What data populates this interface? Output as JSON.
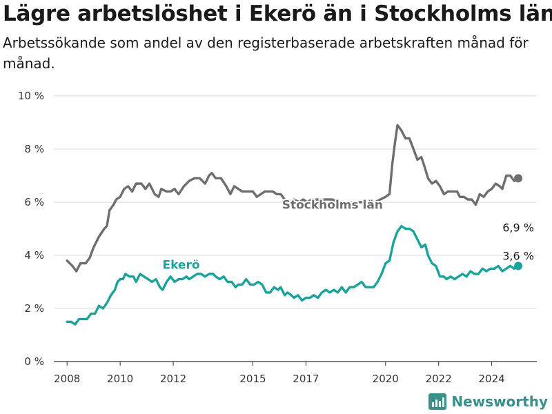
{
  "title": "Lägre arbetslöshet i Ekerö än i Stockholms län",
  "subtitle": "Arbetssökande som andel av den registerbaserade arbetskraften månad för månad.",
  "brand": {
    "name": "Newsworthy",
    "icon": "bar-chart-logo-icon",
    "color": "#3a8f8a"
  },
  "chart_data": {
    "type": "line",
    "title": "Lägre arbetslöshet i Ekerö än i Stockholms län",
    "subtitle": "Arbetssökande som andel av den registerbaserade arbetskraften månad för månad.",
    "xlabel": "",
    "ylabel": "",
    "xlim": [
      2007.5,
      2025.7
    ],
    "ylim": [
      0,
      10
    ],
    "grid": true,
    "x_ticks": [
      2008,
      2010,
      2012,
      2015,
      2017,
      2020,
      2022,
      2024
    ],
    "x_tick_labels": [
      "2008",
      "2010",
      "2012",
      "2015",
      "2017",
      "2020",
      "2022",
      "2024"
    ],
    "y_ticks": [
      0,
      2,
      4,
      6,
      8,
      10
    ],
    "y_tick_labels": [
      "0 %",
      "2 %",
      "4 %",
      "6 %",
      "8 %",
      "10 %"
    ],
    "series": [
      {
        "name": "Stockholms län",
        "color": "#6e6e6e",
        "end_label": "6,9 %",
        "points": [
          [
            2008.0,
            3.8
          ],
          [
            2008.2,
            3.6
          ],
          [
            2008.35,
            3.4
          ],
          [
            2008.5,
            3.7
          ],
          [
            2008.7,
            3.7
          ],
          [
            2008.85,
            3.9
          ],
          [
            2009.0,
            4.3
          ],
          [
            2009.2,
            4.7
          ],
          [
            2009.4,
            5.0
          ],
          [
            2009.5,
            5.1
          ],
          [
            2009.6,
            5.7
          ],
          [
            2009.75,
            5.9
          ],
          [
            2009.85,
            6.1
          ],
          [
            2010.0,
            6.2
          ],
          [
            2010.15,
            6.5
          ],
          [
            2010.3,
            6.6
          ],
          [
            2010.45,
            6.4
          ],
          [
            2010.6,
            6.7
          ],
          [
            2010.8,
            6.7
          ],
          [
            2010.95,
            6.5
          ],
          [
            2011.1,
            6.7
          ],
          [
            2011.3,
            6.3
          ],
          [
            2011.45,
            6.2
          ],
          [
            2011.55,
            6.5
          ],
          [
            2011.75,
            6.4
          ],
          [
            2011.9,
            6.4
          ],
          [
            2012.05,
            6.5
          ],
          [
            2012.2,
            6.3
          ],
          [
            2012.4,
            6.6
          ],
          [
            2012.6,
            6.8
          ],
          [
            2012.8,
            6.9
          ],
          [
            2013.0,
            6.9
          ],
          [
            2013.2,
            6.7
          ],
          [
            2013.35,
            7.0
          ],
          [
            2013.45,
            7.1
          ],
          [
            2013.6,
            6.9
          ],
          [
            2013.8,
            6.9
          ],
          [
            2014.0,
            6.6
          ],
          [
            2014.15,
            6.3
          ],
          [
            2014.3,
            6.6
          ],
          [
            2014.45,
            6.5
          ],
          [
            2014.6,
            6.4
          ],
          [
            2014.8,
            6.4
          ],
          [
            2015.0,
            6.4
          ],
          [
            2015.15,
            6.2
          ],
          [
            2015.3,
            6.3
          ],
          [
            2015.45,
            6.4
          ],
          [
            2015.6,
            6.4
          ],
          [
            2015.75,
            6.4
          ],
          [
            2015.9,
            6.3
          ],
          [
            2016.05,
            6.3
          ],
          [
            2016.2,
            6.1
          ],
          [
            2016.35,
            6.0
          ],
          [
            2016.55,
            6.1
          ],
          [
            2016.75,
            6.0
          ],
          [
            2016.9,
            6.1
          ],
          [
            2017.05,
            6.0
          ],
          [
            2017.2,
            6.1
          ],
          [
            2017.45,
            6.1
          ],
          [
            2017.7,
            6.1
          ],
          [
            2018.0,
            6.1
          ],
          [
            2018.2,
            6.0
          ],
          [
            2018.4,
            5.95
          ],
          [
            2018.6,
            5.95
          ],
          [
            2018.8,
            6.0
          ],
          [
            2019.0,
            6.0
          ],
          [
            2019.2,
            6.0
          ],
          [
            2019.45,
            6.0
          ],
          [
            2019.6,
            6.0
          ],
          [
            2019.8,
            6.1
          ],
          [
            2020.0,
            6.2
          ],
          [
            2020.15,
            6.3
          ],
          [
            2020.25,
            7.4
          ],
          [
            2020.35,
            8.2
          ],
          [
            2020.45,
            8.9
          ],
          [
            2020.6,
            8.7
          ],
          [
            2020.75,
            8.4
          ],
          [
            2020.9,
            8.4
          ],
          [
            2021.05,
            8.0
          ],
          [
            2021.2,
            7.6
          ],
          [
            2021.35,
            7.7
          ],
          [
            2021.45,
            7.4
          ],
          [
            2021.6,
            6.9
          ],
          [
            2021.75,
            6.7
          ],
          [
            2021.9,
            6.8
          ],
          [
            2022.05,
            6.6
          ],
          [
            2022.2,
            6.3
          ],
          [
            2022.35,
            6.4
          ],
          [
            2022.55,
            6.4
          ],
          [
            2022.7,
            6.4
          ],
          [
            2022.8,
            6.2
          ],
          [
            2022.95,
            6.2
          ],
          [
            2023.1,
            6.1
          ],
          [
            2023.25,
            6.1
          ],
          [
            2023.4,
            5.9
          ],
          [
            2023.55,
            6.3
          ],
          [
            2023.7,
            6.2
          ],
          [
            2023.85,
            6.4
          ],
          [
            2024.0,
            6.5
          ],
          [
            2024.15,
            6.7
          ],
          [
            2024.3,
            6.6
          ],
          [
            2024.4,
            6.5
          ],
          [
            2024.55,
            7.0
          ],
          [
            2024.7,
            7.0
          ],
          [
            2024.85,
            6.8
          ],
          [
            2025.0,
            6.9
          ]
        ]
      },
      {
        "name": "Ekerö",
        "color": "#1aa39a",
        "end_label": "3,6 %",
        "points": [
          [
            2008.0,
            1.5
          ],
          [
            2008.15,
            1.5
          ],
          [
            2008.3,
            1.4
          ],
          [
            2008.45,
            1.6
          ],
          [
            2008.6,
            1.6
          ],
          [
            2008.75,
            1.6
          ],
          [
            2008.9,
            1.8
          ],
          [
            2009.05,
            1.8
          ],
          [
            2009.2,
            2.1
          ],
          [
            2009.35,
            2.0
          ],
          [
            2009.5,
            2.2
          ],
          [
            2009.65,
            2.5
          ],
          [
            2009.8,
            2.7
          ],
          [
            2009.9,
            3.0
          ],
          [
            2010.0,
            3.1
          ],
          [
            2010.1,
            3.1
          ],
          [
            2010.2,
            3.3
          ],
          [
            2010.35,
            3.2
          ],
          [
            2010.5,
            3.2
          ],
          [
            2010.6,
            3.0
          ],
          [
            2010.75,
            3.3
          ],
          [
            2010.9,
            3.2
          ],
          [
            2011.05,
            3.1
          ],
          [
            2011.2,
            3.0
          ],
          [
            2011.35,
            3.1
          ],
          [
            2011.5,
            2.8
          ],
          [
            2011.6,
            2.7
          ],
          [
            2011.75,
            3.0
          ],
          [
            2011.9,
            3.2
          ],
          [
            2012.05,
            3.0
          ],
          [
            2012.2,
            3.1
          ],
          [
            2012.35,
            3.1
          ],
          [
            2012.5,
            3.2
          ],
          [
            2012.6,
            3.1
          ],
          [
            2012.75,
            3.2
          ],
          [
            2012.9,
            3.3
          ],
          [
            2013.05,
            3.3
          ],
          [
            2013.2,
            3.2
          ],
          [
            2013.35,
            3.3
          ],
          [
            2013.5,
            3.3
          ],
          [
            2013.6,
            3.2
          ],
          [
            2013.75,
            3.1
          ],
          [
            2013.9,
            3.2
          ],
          [
            2014.05,
            3.0
          ],
          [
            2014.2,
            3.0
          ],
          [
            2014.35,
            2.8
          ],
          [
            2014.45,
            2.9
          ],
          [
            2014.6,
            2.9
          ],
          [
            2014.75,
            3.1
          ],
          [
            2014.9,
            2.9
          ],
          [
            2015.05,
            2.9
          ],
          [
            2015.2,
            3.0
          ],
          [
            2015.35,
            2.9
          ],
          [
            2015.5,
            2.6
          ],
          [
            2015.65,
            2.6
          ],
          [
            2015.8,
            2.8
          ],
          [
            2015.95,
            2.7
          ],
          [
            2016.05,
            2.8
          ],
          [
            2016.2,
            2.5
          ],
          [
            2016.3,
            2.6
          ],
          [
            2016.45,
            2.5
          ],
          [
            2016.55,
            2.4
          ],
          [
            2016.7,
            2.5
          ],
          [
            2016.85,
            2.3
          ],
          [
            2017.0,
            2.4
          ],
          [
            2017.15,
            2.4
          ],
          [
            2017.3,
            2.5
          ],
          [
            2017.45,
            2.4
          ],
          [
            2017.6,
            2.6
          ],
          [
            2017.75,
            2.7
          ],
          [
            2017.9,
            2.6
          ],
          [
            2018.05,
            2.7
          ],
          [
            2018.2,
            2.6
          ],
          [
            2018.35,
            2.8
          ],
          [
            2018.5,
            2.6
          ],
          [
            2018.65,
            2.8
          ],
          [
            2018.8,
            2.8
          ],
          [
            2018.95,
            2.9
          ],
          [
            2019.1,
            3.0
          ],
          [
            2019.25,
            2.8
          ],
          [
            2019.4,
            2.8
          ],
          [
            2019.55,
            2.8
          ],
          [
            2019.7,
            3.0
          ],
          [
            2019.85,
            3.3
          ],
          [
            2020.0,
            3.7
          ],
          [
            2020.15,
            3.8
          ],
          [
            2020.3,
            4.5
          ],
          [
            2020.45,
            4.9
          ],
          [
            2020.6,
            5.1
          ],
          [
            2020.75,
            5.0
          ],
          [
            2020.9,
            5.0
          ],
          [
            2021.05,
            4.9
          ],
          [
            2021.2,
            4.6
          ],
          [
            2021.35,
            4.3
          ],
          [
            2021.5,
            4.4
          ],
          [
            2021.6,
            4.0
          ],
          [
            2021.75,
            3.7
          ],
          [
            2021.9,
            3.6
          ],
          [
            2022.05,
            3.2
          ],
          [
            2022.2,
            3.2
          ],
          [
            2022.3,
            3.1
          ],
          [
            2022.45,
            3.2
          ],
          [
            2022.6,
            3.1
          ],
          [
            2022.75,
            3.2
          ],
          [
            2022.9,
            3.3
          ],
          [
            2023.05,
            3.2
          ],
          [
            2023.2,
            3.4
          ],
          [
            2023.35,
            3.3
          ],
          [
            2023.5,
            3.3
          ],
          [
            2023.65,
            3.5
          ],
          [
            2023.8,
            3.4
          ],
          [
            2023.95,
            3.5
          ],
          [
            2024.1,
            3.5
          ],
          [
            2024.25,
            3.6
          ],
          [
            2024.4,
            3.4
          ],
          [
            2024.55,
            3.5
          ],
          [
            2024.7,
            3.6
          ],
          [
            2024.85,
            3.5
          ],
          [
            2025.0,
            3.6
          ]
        ]
      }
    ]
  }
}
